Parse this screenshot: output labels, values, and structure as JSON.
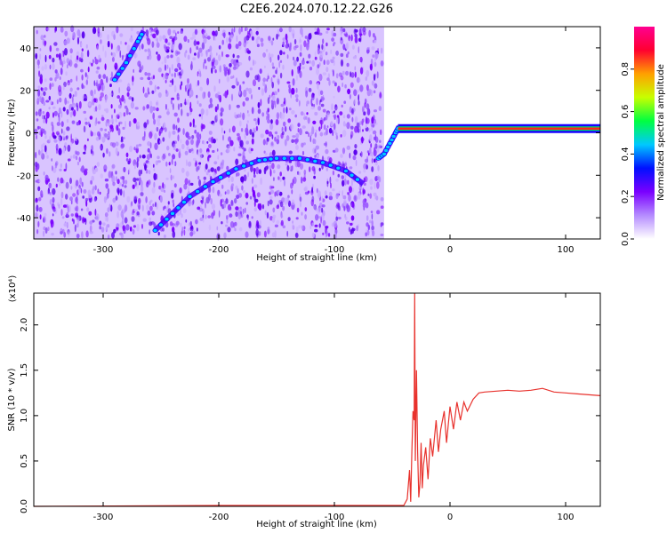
{
  "title": "C2E6.2024.070.12.22.G26",
  "chart_data": [
    {
      "type": "heatmap",
      "xlabel": "Height of straight line (km)",
      "ylabel": "Frequency (Hz)",
      "xlim": [
        -360,
        130
      ],
      "ylim": [
        -50,
        50
      ],
      "xticks": [
        -300,
        -200,
        -100,
        0,
        100
      ],
      "yticks": [
        -40,
        -20,
        0,
        20,
        40
      ],
      "noise_region_x": [
        -360,
        -57
      ],
      "tracks": [
        {
          "name": "descending trace",
          "points": [
            [
              -290,
              25
            ],
            [
              -280,
              33
            ],
            [
              -270,
              43
            ],
            [
              -265,
              48
            ]
          ]
        },
        {
          "name": "rising trace",
          "points": [
            [
              -255,
              -46
            ],
            [
              -240,
              -38
            ],
            [
              -225,
              -30
            ],
            [
              -205,
              -23
            ],
            [
              -185,
              -17
            ],
            [
              -165,
              -13
            ],
            [
              -150,
              -12
            ],
            [
              -130,
              -12
            ],
            [
              -110,
              -14
            ],
            [
              -90,
              -18
            ],
            [
              -75,
              -24
            ]
          ]
        },
        {
          "name": "approach trace",
          "points": [
            [
              -62,
              -12
            ],
            [
              -57,
              -10
            ],
            [
              -52,
              -5
            ],
            [
              -47,
              0
            ],
            [
              -44,
              3
            ]
          ]
        },
        {
          "name": "carrier",
          "points": [
            [
              -45,
              2
            ],
            [
              0,
              2
            ],
            [
              60,
              2
            ],
            [
              90,
              2
            ],
            [
              130,
              2
            ]
          ]
        }
      ],
      "colorbar": {
        "label": "Normalized spectral amplitude",
        "ticks": [
          "0.0",
          "0.2",
          "0.4",
          "0.6",
          "0.8"
        ],
        "range": [
          0,
          1
        ],
        "colors": [
          "#ffffff",
          "#b58cff",
          "#7a00ff",
          "#0010ff",
          "#00c8ff",
          "#00ff40",
          "#c8ff00",
          "#ffa000",
          "#ff0030",
          "#ff0090"
        ]
      }
    },
    {
      "type": "line",
      "xlabel": "Height of straight line (km)",
      "ylabel": "SNR (10 * v/v)",
      "multiplier": "(x10⁴)",
      "xlim": [
        -360,
        130
      ],
      "ylim": [
        0,
        2.35
      ],
      "xticks": [
        -300,
        -200,
        -100,
        0,
        100
      ],
      "yticks": [
        "0.0",
        "0.5",
        "1.0",
        "1.5",
        "2.0"
      ],
      "series": [
        {
          "color": "#e8322d",
          "points": [
            [
              -360,
              0.0
            ],
            [
              -200,
              0.01
            ],
            [
              -100,
              0.01
            ],
            [
              -40,
              0.01
            ],
            [
              -37,
              0.08
            ],
            [
              -35,
              0.4
            ],
            [
              -34,
              0.05
            ],
            [
              -33,
              0.6
            ],
            [
              -32,
              1.05
            ],
            [
              -31,
              0.95
            ],
            [
              -30.5,
              2.35
            ],
            [
              -30,
              0.5
            ],
            [
              -29,
              1.5
            ],
            [
              -28,
              0.6
            ],
            [
              -27,
              0.1
            ],
            [
              -26,
              0.25
            ],
            [
              -25,
              0.7
            ],
            [
              -24,
              0.2
            ],
            [
              -23,
              0.45
            ],
            [
              -21,
              0.65
            ],
            [
              -19,
              0.3
            ],
            [
              -17,
              0.75
            ],
            [
              -15,
              0.55
            ],
            [
              -12,
              0.95
            ],
            [
              -10,
              0.6
            ],
            [
              -8,
              0.85
            ],
            [
              -5,
              1.05
            ],
            [
              -3,
              0.7
            ],
            [
              0,
              1.1
            ],
            [
              3,
              0.85
            ],
            [
              6,
              1.15
            ],
            [
              9,
              0.95
            ],
            [
              12,
              1.15
            ],
            [
              15,
              1.05
            ],
            [
              20,
              1.18
            ],
            [
              25,
              1.25
            ],
            [
              30,
              1.26
            ],
            [
              40,
              1.27
            ],
            [
              50,
              1.28
            ],
            [
              60,
              1.27
            ],
            [
              70,
              1.28
            ],
            [
              80,
              1.3
            ],
            [
              90,
              1.26
            ],
            [
              100,
              1.25
            ],
            [
              110,
              1.24
            ],
            [
              120,
              1.23
            ],
            [
              130,
              1.22
            ]
          ]
        }
      ]
    }
  ]
}
